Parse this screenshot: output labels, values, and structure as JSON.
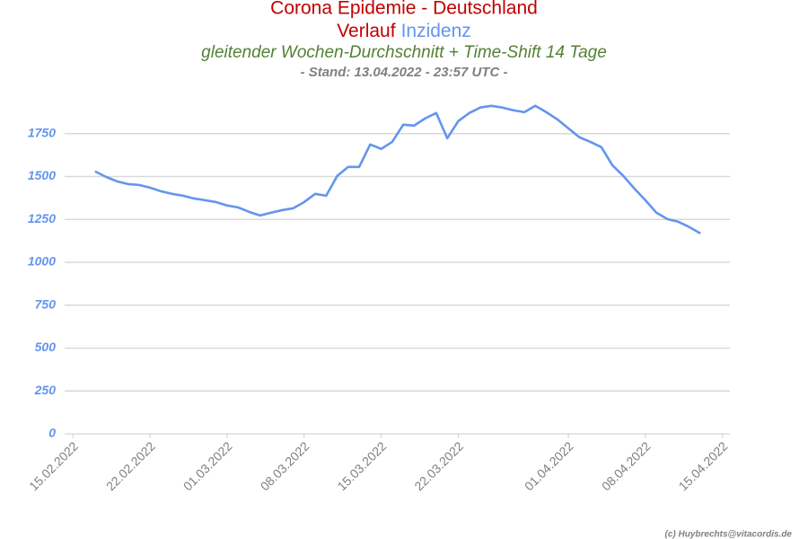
{
  "chart_data": {
    "type": "line",
    "title": "Corona Epidemie - Deutschland",
    "title_parts": [
      {
        "text": "Verlauf",
        "color": "#c00000"
      },
      {
        "text": "Inzidenz",
        "color": "#6495ed"
      }
    ],
    "subtitle": "gleitender Wochen-Durchschnitt + Time-Shift 14 Tage",
    "note": "- Stand: 13.04.2022 - 23:57 UTC -",
    "credit": "(c) Huybrechts@vitacordis.de",
    "color": "#6495ed",
    "grid": true,
    "x": [
      "17.02.2022",
      "18.02.2022",
      "19.02.2022",
      "20.02.2022",
      "21.02.2022",
      "22.02.2022",
      "23.02.2022",
      "24.02.2022",
      "25.02.2022",
      "26.02.2022",
      "27.02.2022",
      "28.02.2022",
      "01.03.2022",
      "02.03.2022",
      "03.03.2022",
      "04.03.2022",
      "05.03.2022",
      "06.03.2022",
      "07.03.2022",
      "08.03.2022",
      "09.03.2022",
      "10.03.2022",
      "11.03.2022",
      "12.03.2022",
      "13.03.2022",
      "14.03.2022",
      "15.03.2022",
      "16.03.2022",
      "17.03.2022",
      "18.03.2022",
      "19.03.2022",
      "20.03.2022",
      "21.03.2022",
      "22.03.2022",
      "23.03.2022",
      "24.03.2022",
      "25.03.2022",
      "26.03.2022",
      "27.03.2022",
      "28.03.2022",
      "29.03.2022",
      "30.03.2022",
      "31.03.2022",
      "01.04.2022",
      "02.04.2022",
      "03.04.2022",
      "04.04.2022",
      "05.04.2022",
      "06.04.2022",
      "07.04.2022",
      "08.04.2022",
      "09.04.2022",
      "10.04.2022",
      "11.04.2022",
      "12.04.2022",
      "13.04.2022"
    ],
    "values": [
      1530,
      1498,
      1472,
      1456,
      1451,
      1435,
      1414,
      1399,
      1388,
      1372,
      1362,
      1351,
      1331,
      1320,
      1294,
      1273,
      1289,
      1304,
      1315,
      1351,
      1399,
      1388,
      1503,
      1556,
      1556,
      1687,
      1661,
      1702,
      1802,
      1797,
      1839,
      1870,
      1723,
      1823,
      1870,
      1902,
      1912,
      1902,
      1886,
      1875,
      1912,
      1875,
      1833,
      1781,
      1729,
      1702,
      1671,
      1566,
      1503,
      1430,
      1362,
      1289,
      1252,
      1236,
      1205,
      1168
    ],
    "xlim": [
      "14.02.2022",
      "16.04.2022"
    ],
    "xticks": [
      "15.02.2022",
      "22.02.2022",
      "01.03.2022",
      "08.03.2022",
      "15.03.2022",
      "22.03.2022",
      "01.04.2022",
      "08.04.2022",
      "15.04.2022"
    ],
    "ylim": [
      0,
      2000
    ],
    "yticks": [
      0,
      250,
      500,
      750,
      1000,
      1250,
      1500,
      1750
    ]
  }
}
